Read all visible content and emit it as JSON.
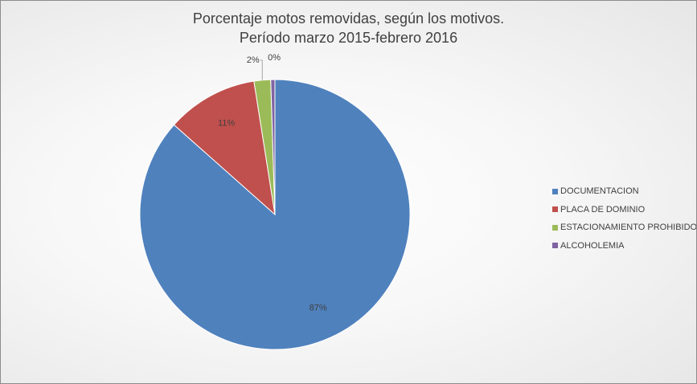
{
  "chart_data": {
    "type": "pie",
    "title_line1": "Porcentaje motos removidas, según los motivos.",
    "title_line2": "Período marzo 2015-febrero 2016",
    "legend_position": "right",
    "slices": [
      {
        "name": "DOCUMENTACION",
        "value": 87,
        "label": "87%",
        "color": "#4f81bd"
      },
      {
        "name": "PLACA DE DOMINIO",
        "value": 11,
        "label": "11%",
        "color": "#c0504d"
      },
      {
        "name": "ESTACIONAMIENTO PROHIBIDO",
        "value": 2,
        "label": "2%",
        "color": "#9bbb59"
      },
      {
        "name": "ALCOHOLEMIA",
        "value": 0.5,
        "label": "0%",
        "color": "#8064a2"
      }
    ]
  }
}
